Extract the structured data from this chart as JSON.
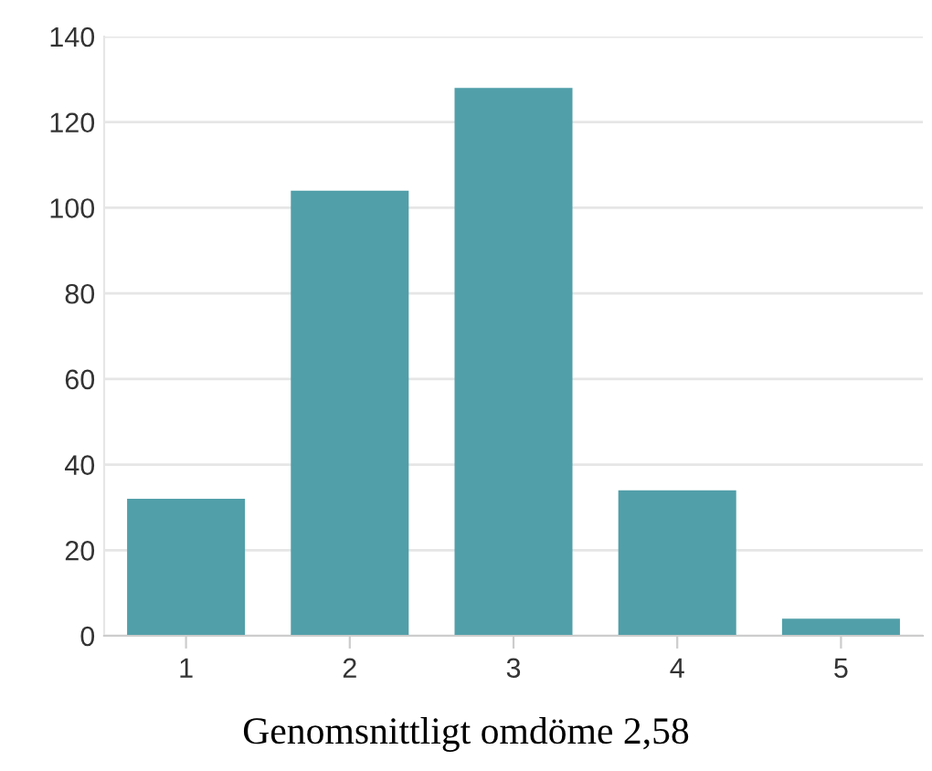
{
  "chart_data": {
    "type": "bar",
    "categories": [
      "1",
      "2",
      "3",
      "4",
      "5"
    ],
    "values": [
      32,
      104,
      128,
      34,
      4
    ],
    "color": "#519fa9",
    "ylim": [
      0,
      140
    ],
    "yticks": [
      0,
      20,
      40,
      60,
      80,
      100,
      120,
      140
    ],
    "grid": "y",
    "annotations": [
      "Genomsnittligt omdöme 2,58"
    ]
  }
}
